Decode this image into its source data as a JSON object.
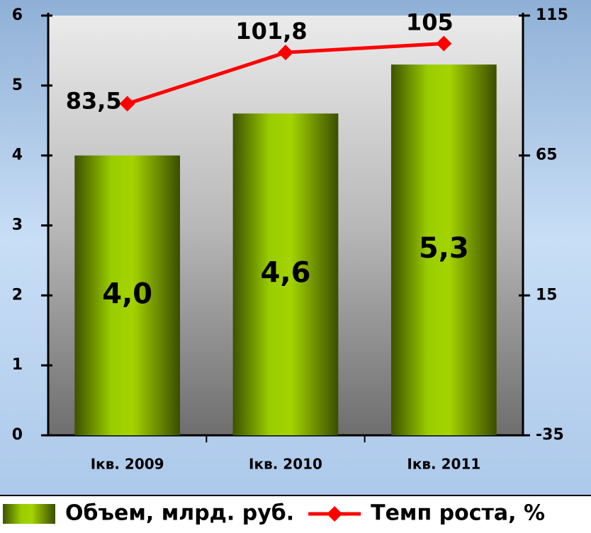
{
  "chart_data": {
    "type": "bar",
    "categories": [
      "Iкв. 2009",
      "Iкв. 2010",
      "Iкв. 2011"
    ],
    "series": [
      {
        "name": "Объем, млрд. руб.",
        "type": "bar",
        "color": "#99cc00",
        "values": [
          4.0,
          4.6,
          5.3
        ],
        "value_labels": [
          "4,0",
          "4,6",
          "5,3"
        ]
      },
      {
        "name": "Темп роста, %",
        "type": "line",
        "axis": "y2",
        "color": "#ff0000",
        "values": [
          83.5,
          101.8,
          105
        ],
        "value_labels": [
          "83,5",
          "101,8",
          "105"
        ]
      }
    ],
    "ylim": [
      0,
      6
    ],
    "yticks": [
      0,
      1,
      2,
      3,
      4,
      5,
      6
    ],
    "y2lim": [
      -35,
      115
    ],
    "y2ticks": [
      -35,
      15,
      65,
      115
    ],
    "legend": "bottom"
  }
}
